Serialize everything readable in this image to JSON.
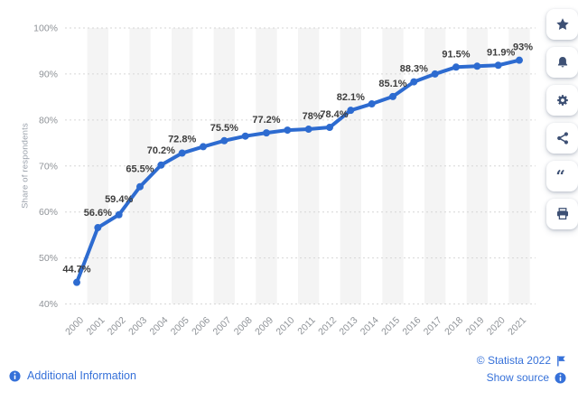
{
  "chart_data": {
    "type": "line",
    "title": "",
    "ylabel": "Share of respondents",
    "xlabel": "",
    "categories": [
      "2000",
      "2001",
      "2002",
      "2003",
      "2004",
      "2005",
      "2006",
      "2007",
      "2008",
      "2009",
      "2010",
      "2011",
      "2012",
      "2013",
      "2014",
      "2015",
      "2016",
      "2017",
      "2018",
      "2019",
      "2020",
      "2021"
    ],
    "values": [
      44.7,
      56.6,
      59.4,
      65.5,
      70.2,
      72.8,
      74.2,
      75.5,
      76.5,
      77.2,
      77.8,
      78,
      78.4,
      82.1,
      83.5,
      85.1,
      88.3,
      90,
      91.5,
      91.7,
      91.9,
      93
    ],
    "point_labels": [
      "44.7%",
      "56.6%",
      "59.4%",
      "65.5%",
      "70.2%",
      "72.8%",
      null,
      "75.5%",
      null,
      "77.2%",
      null,
      "78%",
      "78.4%",
      "82.1%",
      null,
      "85.1%",
      "88.3%",
      null,
      "91.5%",
      null,
      "91.9%",
      "93%"
    ],
    "ylim": [
      40,
      100
    ],
    "yticks": [
      {
        "value": 40,
        "label": "40%"
      },
      {
        "value": 50,
        "label": "50%"
      },
      {
        "value": 60,
        "label": "60%"
      },
      {
        "value": 70,
        "label": "70%"
      },
      {
        "value": 80,
        "label": "80%"
      },
      {
        "value": 90,
        "label": "90%"
      },
      {
        "value": 100,
        "label": "100%"
      }
    ],
    "grid": "horizontal-dashed",
    "legend": "none",
    "stripes": "alternating vertical bands on odd years",
    "colors": {
      "line": "#2d6bd0",
      "point": "#2d6bd0",
      "stripe": "#f4f4f4",
      "grid": "#d6d6d6",
      "axis_text": "#8f9398",
      "label_text": "#3d3d3d"
    }
  },
  "sidebar": {
    "buttons": [
      {
        "name": "favorite",
        "icon": "star-icon"
      },
      {
        "name": "notifications",
        "icon": "bell-icon"
      },
      {
        "name": "settings",
        "icon": "gear-icon"
      },
      {
        "name": "share",
        "icon": "share-icon"
      },
      {
        "name": "cite",
        "icon": "quote-icon"
      },
      {
        "name": "print",
        "icon": "printer-icon"
      }
    ],
    "icon_color": "#3d5074"
  },
  "footer": {
    "additional_information": "Additional Information",
    "copyright": "© Statista 2022",
    "show_source": "Show source",
    "link_color": "#3671d9"
  }
}
